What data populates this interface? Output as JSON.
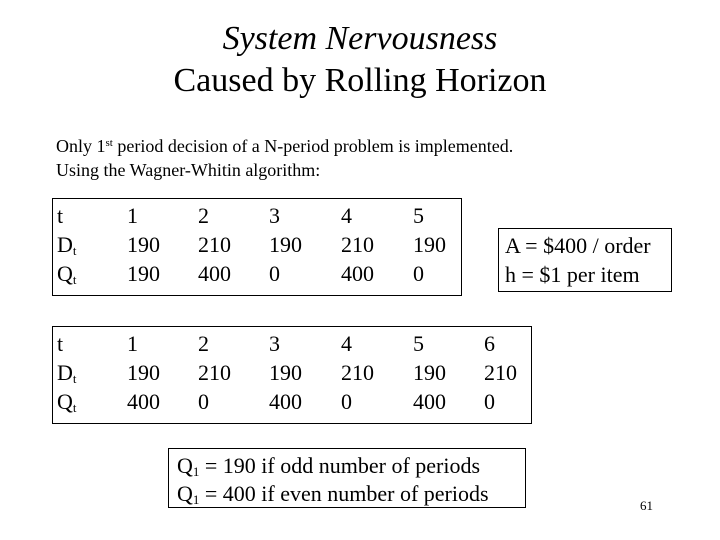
{
  "title": {
    "line1": "System Nervousness",
    "line2": "Caused by Rolling Horizon"
  },
  "intro": {
    "line1_prefix": "Only 1",
    "line1_sup": "st",
    "line1_suffix": " period decision of a N-period problem is implemented.",
    "line2": "Using the Wagner-Whitin algorithm:"
  },
  "table1": {
    "row_labels": {
      "t": "t",
      "d": "D",
      "d_sub": "t",
      "q": "Q",
      "q_sub": "t"
    },
    "t": [
      "1",
      "2",
      "3",
      "4",
      "5"
    ],
    "d": [
      "190",
      "210",
      "190",
      "210",
      "190"
    ],
    "q": [
      "190",
      "400",
      "0",
      "400",
      "0"
    ]
  },
  "table2": {
    "row_labels": {
      "t": "t",
      "d": "D",
      "d_sub": "t",
      "q": "Q",
      "q_sub": "t"
    },
    "t": [
      "1",
      "2",
      "3",
      "4",
      "5",
      "6"
    ],
    "d": [
      "190",
      "210",
      "190",
      "210",
      "190",
      "210"
    ],
    "q": [
      "400",
      "0",
      "400",
      "0",
      "400",
      "0"
    ]
  },
  "params": {
    "setup_cost": "A = $400 / order",
    "holding_cost": "h = $1 per item"
  },
  "conclusion": {
    "line1_var": "Q",
    "line1_sub": "1",
    "line1_text": " = 190 if odd number of periods",
    "line2_var": "Q",
    "line2_sub": "1",
    "line2_text": " = 400 if even number of periods"
  },
  "page_number": "61"
}
